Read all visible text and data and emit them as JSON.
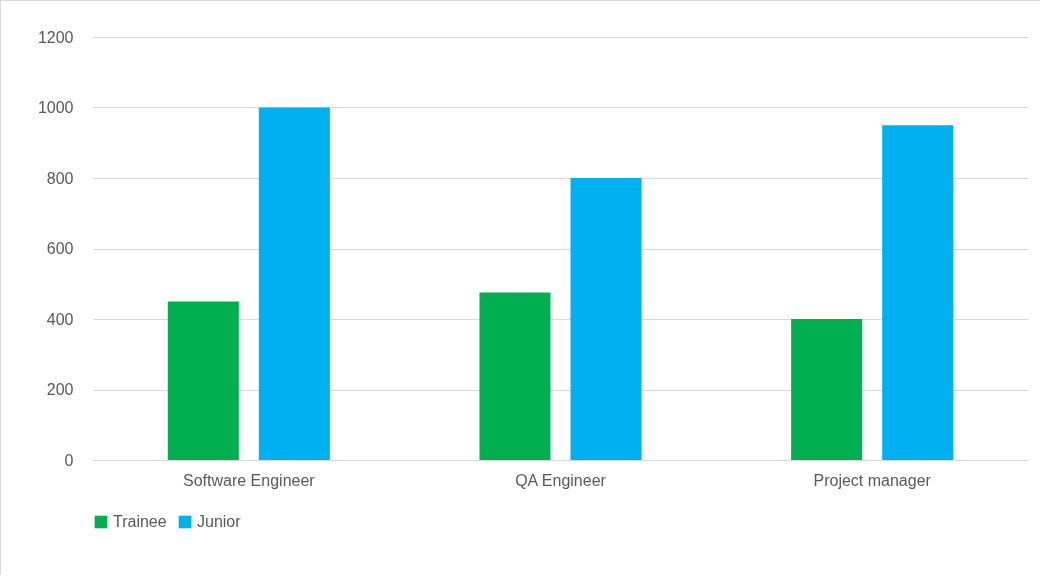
{
  "chart_data": {
    "type": "bar",
    "categories": [
      "Software Engineer",
      "QA Engineer",
      "Project manager"
    ],
    "series": [
      {
        "name": "Trainee",
        "color": "#00b050",
        "values": [
          450,
          475,
          400
        ]
      },
      {
        "name": "Junior",
        "color": "#00b0f0",
        "values": [
          1000,
          800,
          950
        ]
      }
    ],
    "ylim": [
      0,
      1200
    ],
    "yticks": [
      0,
      200,
      400,
      600,
      800,
      1000,
      1200
    ],
    "grid": "y",
    "legend": "bottom"
  }
}
